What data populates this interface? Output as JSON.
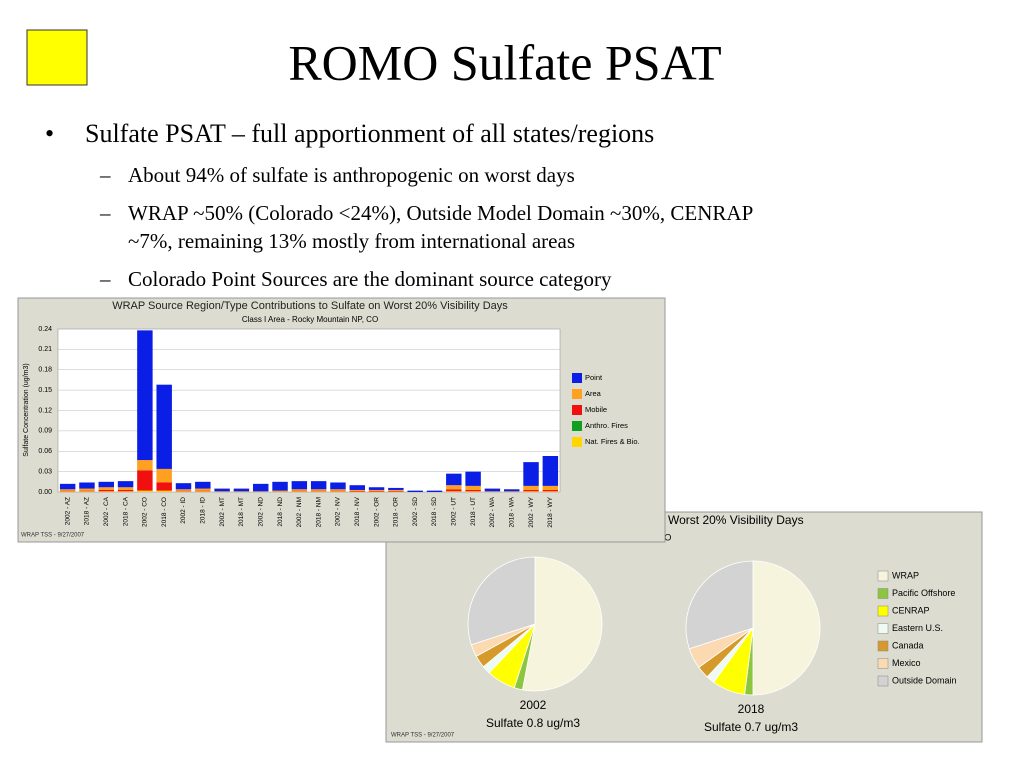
{
  "slide": {
    "title": "ROMO Sulfate PSAT",
    "bullet": "Sulfate PSAT – full apportionment of all states/regions",
    "sub_bullets": [
      [
        "About 94% of sulfate is anthropogenic on worst days"
      ],
      [
        "WRAP ~50% (Colorado <24%), Outside Model Domain ~30%, CENRAP",
        "~7%, remaining 13% mostly from international areas"
      ],
      [
        "Colorado Point Sources are the dominant source category"
      ]
    ]
  },
  "chart_data": [
    {
      "type": "bar",
      "title": "WRAP Source Region/Type Contributions to Sulfate on Worst 20% Visibility Days",
      "subtitle": "Class I Area - Rocky Mountain NP, CO",
      "ylabel": "Sulfate Concentration (ug/m3)",
      "footnote": "WRAP TSS - 9/27/2007",
      "stacked": true,
      "grid": true,
      "legend": "right",
      "categories": [
        "2002 - AZ",
        "2018 - AZ",
        "2002 - CA",
        "2018 - CA",
        "2002 - CO",
        "2018 - CO",
        "2002 - ID",
        "2018 - ID",
        "2002 - MT",
        "2018 - MT",
        "2002 - ND",
        "2018 - ND",
        "2002 - NM",
        "2018 - NM",
        "2002 - NV",
        "2018 - NV",
        "2002 - OR",
        "2018 - OR",
        "2002 - SD",
        "2018 - SD",
        "2002 - UT",
        "2018 - UT",
        "2002 - WA",
        "2018 - WA",
        "2002 - WY",
        "2018 - WY"
      ],
      "series": [
        {
          "name": "Point",
          "color": "#0a1ee6",
          "values": [
            0.008,
            0.009,
            0.008,
            0.009,
            0.191,
            0.124,
            0.009,
            0.01,
            0.004,
            0.004,
            0.011,
            0.013,
            0.012,
            0.012,
            0.01,
            0.007,
            0.004,
            0.003,
            0.002,
            0.002,
            0.017,
            0.021,
            0.004,
            0.003,
            0.035,
            0.044
          ]
        },
        {
          "name": "Area",
          "color": "#ffa020",
          "values": [
            0.002,
            0.003,
            0.004,
            0.004,
            0.015,
            0.02,
            0.002,
            0.003,
            0.001,
            0.001,
            0.001,
            0.002,
            0.002,
            0.002,
            0.002,
            0.002,
            0.002,
            0.002,
            0,
            0,
            0.006,
            0.006,
            0.001,
            0.001,
            0.006,
            0.006
          ]
        },
        {
          "name": "Mobile",
          "color": "#f01010",
          "values": [
            0.001,
            0.001,
            0.002,
            0.002,
            0.03,
            0.012,
            0.001,
            0.001,
            0,
            0,
            0,
            0,
            0.001,
            0.001,
            0.001,
            0.001,
            0.001,
            0.001,
            0,
            0,
            0.003,
            0.002,
            0,
            0,
            0.002,
            0.002
          ]
        },
        {
          "name": "Anthro. Fires",
          "color": "#10a020",
          "values": [
            0,
            0,
            0,
            0,
            0,
            0,
            0,
            0,
            0,
            0,
            0,
            0,
            0,
            0,
            0,
            0,
            0,
            0,
            0,
            0,
            0,
            0,
            0,
            0,
            0,
            0
          ]
        },
        {
          "name": "Nat. Fires & Bio.",
          "color": "#ffd400",
          "values": [
            0.001,
            0.001,
            0.001,
            0.001,
            0.002,
            0.002,
            0.001,
            0.001,
            0,
            0,
            0,
            0,
            0.001,
            0.001,
            0.001,
            0,
            0,
            0,
            0,
            0,
            0.001,
            0.001,
            0,
            0,
            0.001,
            0.001
          ]
        }
      ],
      "ylim": [
        0,
        0.24
      ],
      "yticks": [
        {
          "value": 0,
          "label": "0.00"
        },
        0.03,
        0.06,
        0.09,
        0.12,
        0.15,
        0.18,
        0.21,
        0.24
      ]
    },
    {
      "type": "pie",
      "title": "Worst 20% Visibility Days",
      "subtitle": "Mountain NP, CO",
      "footnote": "WRAP TSS - 9/27/2007",
      "legend": "right",
      "categories": [
        "WRAP",
        "Pacific Offshore",
        "CENRAP",
        "Eastern U.S.",
        "Canada",
        "Mexico",
        "Outside Domain"
      ],
      "colors": [
        "#f6f4dc",
        "#8cc63e",
        "#ffff00",
        "#eefaf4",
        "#d69a2a",
        "#fbdab2",
        "#d3d3d3"
      ],
      "series": [
        {
          "name": "2002",
          "label": "Sulfate 0.8 ug/m3",
          "values": [
            53,
            2,
            7,
            2,
            3,
            3,
            30
          ]
        },
        {
          "name": "2018",
          "label": "Sulfate 0.7 ug/m3",
          "values": [
            50,
            2,
            8,
            2,
            3,
            5,
            30
          ]
        }
      ]
    }
  ]
}
